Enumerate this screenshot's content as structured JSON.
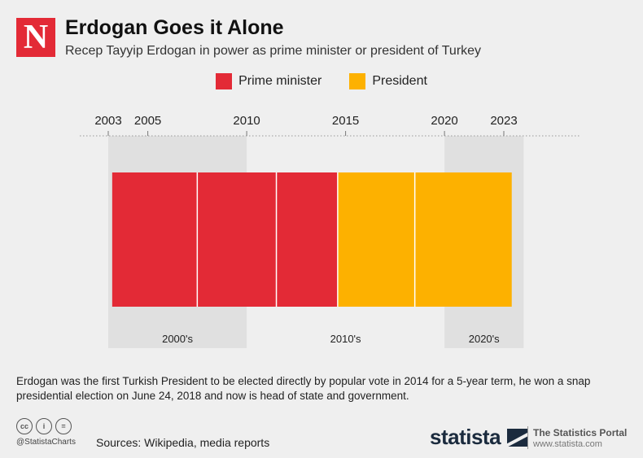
{
  "brand": {
    "logo_letter": "N"
  },
  "header": {
    "title": "Erdogan Goes it Alone",
    "subtitle": "Recep Tayyip Erdogan in power as prime minister or president of Turkey"
  },
  "colors": {
    "prime_minister": "#e32a36",
    "president": "#fdb100",
    "decade_band": "#e0e0e0",
    "background": "#efefef"
  },
  "chart_data": {
    "type": "bar",
    "orientation": "horizontal-timeline",
    "title": "Erdogan Goes it Alone",
    "subtitle": "Recep Tayyip Erdogan in power as prime minister or president of Turkey",
    "xlim": [
      2003,
      2023
    ],
    "ticks": [
      2003,
      2005,
      2010,
      2015,
      2020,
      2023
    ],
    "legend": {
      "placement": "top",
      "entries": [
        "Prime minister",
        "President"
      ]
    },
    "series": [
      {
        "name": "Prime minister",
        "color": "#e32a36",
        "terms": [
          {
            "start": 2003.2,
            "end": 2007.5
          },
          {
            "start": 2007.5,
            "end": 2011.5
          },
          {
            "start": 2011.5,
            "end": 2014.6
          }
        ]
      },
      {
        "name": "President",
        "color": "#fdb100",
        "terms": [
          {
            "start": 2014.6,
            "end": 2018.5
          },
          {
            "start": 2018.5,
            "end": 2023.4
          }
        ]
      }
    ],
    "decades": [
      {
        "label": "2000's",
        "start": 2003,
        "end": 2010,
        "shaded": true
      },
      {
        "label": "2010's",
        "start": 2010,
        "end": 2020,
        "shaded": false
      },
      {
        "label": "2020's",
        "start": 2020,
        "end": 2024,
        "shaded": true
      }
    ]
  },
  "note": "Erdogan was the first Turkish President to be elected directly by popular vote in 2014 for a 5-year term, he won a snap presidential election on June 24, 2018 and now is head of state and government.",
  "footer": {
    "icons": [
      "cc-icon",
      "by-icon",
      "nd-icon"
    ],
    "icon_glyphs": [
      "cc",
      "i",
      "="
    ],
    "handle": "@StatistaCharts",
    "sources": "Sources: Wikipedia, media reports",
    "statista": "statista",
    "portal": "The Statistics Portal",
    "portal_url": "www.statista.com"
  }
}
